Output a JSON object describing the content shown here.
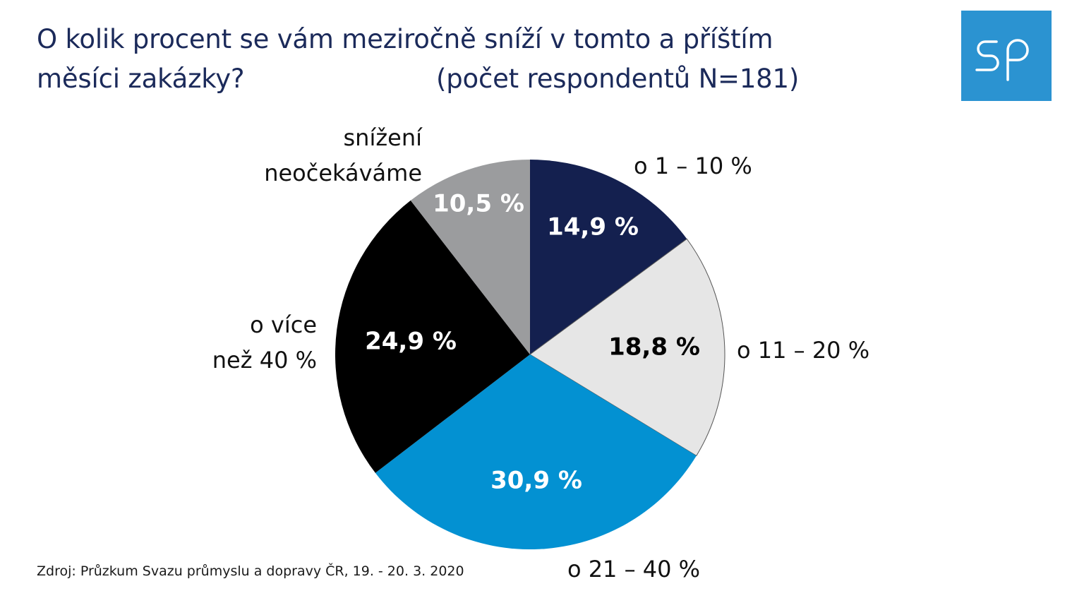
{
  "header": {
    "title_line1": "O kolik procent se vám meziročně sníží v tomto a příštím",
    "title_line2": "měsíci zakázky?",
    "title_n": "(počet respondentů N=181)"
  },
  "logo": {
    "text": "sp",
    "background": "#2b93d1"
  },
  "chart_data": {
    "type": "pie",
    "title": "O kolik procent se vám meziročně sníží v tomto a příštím měsíci zakázky? (počet respondentů N=181)",
    "start_angle": "12 o'clock, clockwise",
    "slices": [
      {
        "label": "o 1 – 10 %",
        "value": 14.9,
        "value_label": "14,9 %",
        "color": "#14204f",
        "text_color": "#ffffff"
      },
      {
        "label": "o 11 – 20 %",
        "value": 18.8,
        "value_label": "18,8 %",
        "color": "#e6e6e6",
        "text_color": "#000000"
      },
      {
        "label": "o 21 – 40 %",
        "value": 30.9,
        "value_label": "30,9 %",
        "color": "#0391d2",
        "text_color": "#ffffff"
      },
      {
        "label": "o více\nnež 40 %",
        "value": 24.9,
        "value_label": "24,9 %",
        "color": "#000000",
        "text_color": "#ffffff"
      },
      {
        "label": "snížení\nneočekáváme",
        "value": 10.5,
        "value_label": "10,5 %",
        "color": "#9b9c9e",
        "text_color": "#ffffff"
      }
    ]
  },
  "footer": {
    "source": "Zdroj: Průzkum Svazu průmyslu a dopravy ČR, 19. - 20. 3. 2020"
  }
}
